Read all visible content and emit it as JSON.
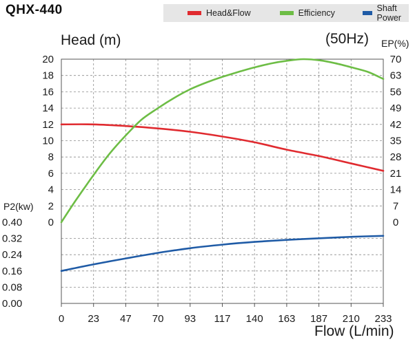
{
  "page": {
    "title": "QHX-440",
    "frequency": "(50Hz)"
  },
  "legend": [
    {
      "label": "Head&Flow",
      "color": "#e02a2f"
    },
    {
      "label": "Efficiency",
      "color": "#6dbd45"
    },
    {
      "label": "Shaft Power",
      "color": "#1f5ba6"
    }
  ],
  "chart_data": {
    "type": "line",
    "title": "QHX-440",
    "xlabel": "Flow (L/min)",
    "x_ticks": [
      "0",
      "23",
      "47",
      "70",
      "93",
      "117",
      "140",
      "163",
      "187",
      "210",
      "233"
    ],
    "xlim": [
      0,
      233
    ],
    "head_axis": {
      "label": "Head (m)",
      "ticks": [
        "20",
        "18",
        "16",
        "14",
        "12",
        "10",
        "8",
        "6",
        "4",
        "2",
        "0"
      ],
      "range": [
        0,
        20
      ]
    },
    "efficiency_axis": {
      "label": "EP(%)",
      "ticks": [
        "70",
        "63",
        "56",
        "49",
        "42",
        "35",
        "28",
        "21",
        "14",
        "7",
        "0"
      ],
      "range": [
        0,
        70
      ]
    },
    "power_axis": {
      "label": "P2(kw)",
      "ticks": [
        "0.40",
        "0.32",
        "0.24",
        "0.16",
        "0.08",
        "0.00"
      ],
      "range": [
        0,
        0.4
      ]
    },
    "series": [
      {
        "name": "Head&Flow",
        "axis": "head_axis",
        "color": "#e02a2f",
        "x": [
          0,
          23,
          47,
          70,
          93,
          117,
          140,
          163,
          187,
          210,
          233
        ],
        "values": [
          12.0,
          12.0,
          11.8,
          11.5,
          11.1,
          10.5,
          9.8,
          8.9,
          8.1,
          7.2,
          6.3
        ]
      },
      {
        "name": "Efficiency",
        "axis": "efficiency_axis",
        "color": "#6dbd45",
        "x": [
          0,
          10,
          23,
          35,
          47,
          58,
          70,
          82,
          93,
          105,
          117,
          128,
          140,
          152,
          163,
          175,
          187,
          198,
          210,
          222,
          233
        ],
        "values": [
          0,
          9,
          20,
          29.5,
          37.5,
          44,
          49,
          53.5,
          57,
          60,
          62.5,
          64.5,
          66.5,
          68.2,
          69.3,
          70,
          69.5,
          68.3,
          66.5,
          64.5,
          61.5
        ]
      },
      {
        "name": "Shaft Power",
        "axis": "power_axis",
        "color": "#1f5ba6",
        "x": [
          0,
          23,
          47,
          70,
          93,
          117,
          140,
          163,
          187,
          210,
          233
        ],
        "values": [
          0.16,
          0.192,
          0.222,
          0.249,
          0.272,
          0.29,
          0.303,
          0.313,
          0.321,
          0.328,
          0.333
        ]
      }
    ]
  }
}
